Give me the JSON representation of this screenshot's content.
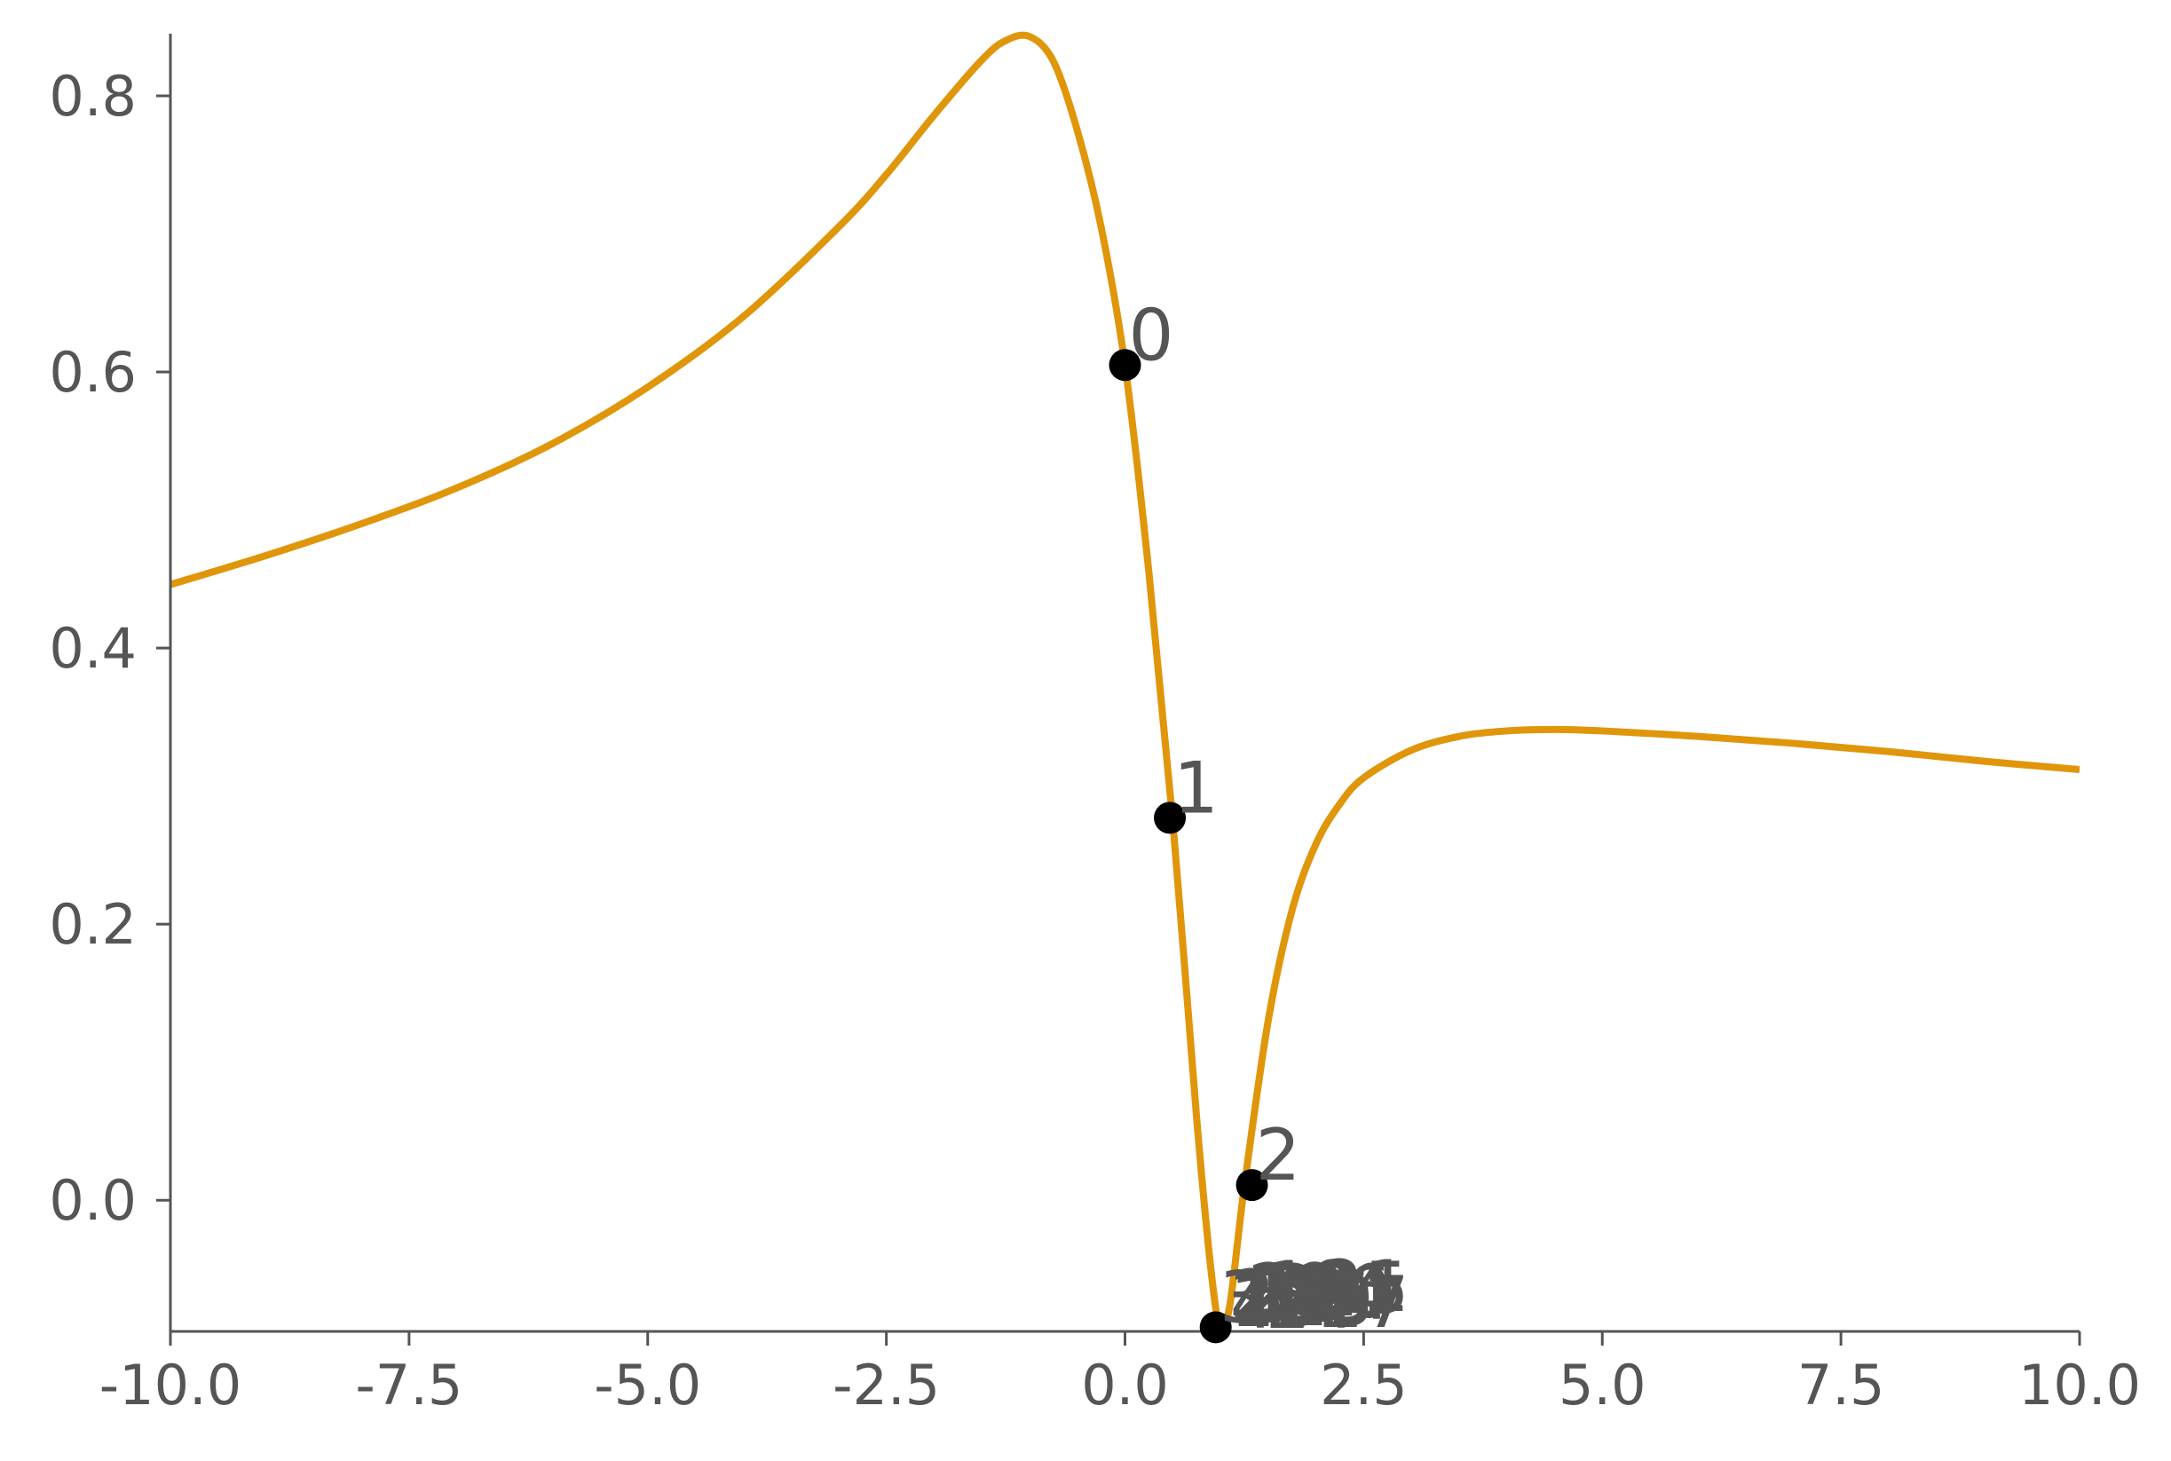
{
  "chart_data": {
    "type": "line",
    "title": "",
    "xlabel": "",
    "ylabel": "",
    "xlim": [
      -10,
      10
    ],
    "ylim": [
      -0.095,
      0.845
    ],
    "grid": false,
    "legend": "none",
    "x_ticks": [
      -10.0,
      -7.5,
      -5.0,
      -2.5,
      0.0,
      2.5,
      5.0,
      7.5,
      10.0
    ],
    "x_tick_labels": [
      "-10.0",
      "-7.5",
      "-5.0",
      "-2.5",
      "0.0",
      "2.5",
      "5.0",
      "7.5",
      "10.0"
    ],
    "y_ticks": [
      0.0,
      0.2,
      0.4,
      0.6,
      0.8
    ],
    "y_tick_labels": [
      "0.0",
      "0.2",
      "0.4",
      "0.6",
      "0.8"
    ],
    "series": [
      {
        "color": "#e0960a",
        "x": [
          -10,
          -9,
          -8,
          -7,
          -6,
          -5,
          -4,
          -3,
          -2.5,
          -2,
          -1.5,
          -1.25,
          -1,
          -0.75,
          -0.5,
          -0.25,
          0,
          0.25,
          0.5,
          0.75,
          0.9,
          1.0,
          1.1,
          1.25,
          1.5,
          1.75,
          2,
          2.25,
          2.5,
          3,
          3.5,
          4,
          4.5,
          5,
          6,
          7,
          8,
          9,
          10
        ],
        "y": [
          0.446,
          0.467,
          0.49,
          0.516,
          0.548,
          0.589,
          0.64,
          0.705,
          0.743,
          0.786,
          0.826,
          0.84,
          0.843,
          0.825,
          0.775,
          0.705,
          0.605,
          0.455,
          0.275,
          0.06,
          -0.05,
          -0.093,
          -0.075,
          0.01,
          0.13,
          0.21,
          0.258,
          0.287,
          0.306,
          0.326,
          0.336,
          0.34,
          0.341,
          0.34,
          0.336,
          0.331,
          0.325,
          0.318,
          0.312
        ]
      }
    ],
    "points": [
      {
        "label": "0",
        "x": 0.0,
        "y": 0.605
      },
      {
        "label": "1",
        "x": 0.47,
        "y": 0.277
      },
      {
        "label": "2",
        "x": 1.33,
        "y": 0.011
      },
      {
        "label": "3",
        "x": 0.95,
        "y": -0.092
      }
    ],
    "clustered_labels": [
      "4",
      "5",
      "6",
      "7",
      "8",
      "9",
      "10",
      "11",
      "12",
      "13",
      "14",
      "15",
      "16",
      "17",
      "18",
      "19",
      "20",
      "21",
      "22",
      "23",
      "24",
      "25",
      "26",
      "27",
      "28",
      "29"
    ]
  },
  "colors": {
    "line": "#e0960a",
    "axis": "#555555",
    "point": "#000000",
    "text": "#555555"
  }
}
